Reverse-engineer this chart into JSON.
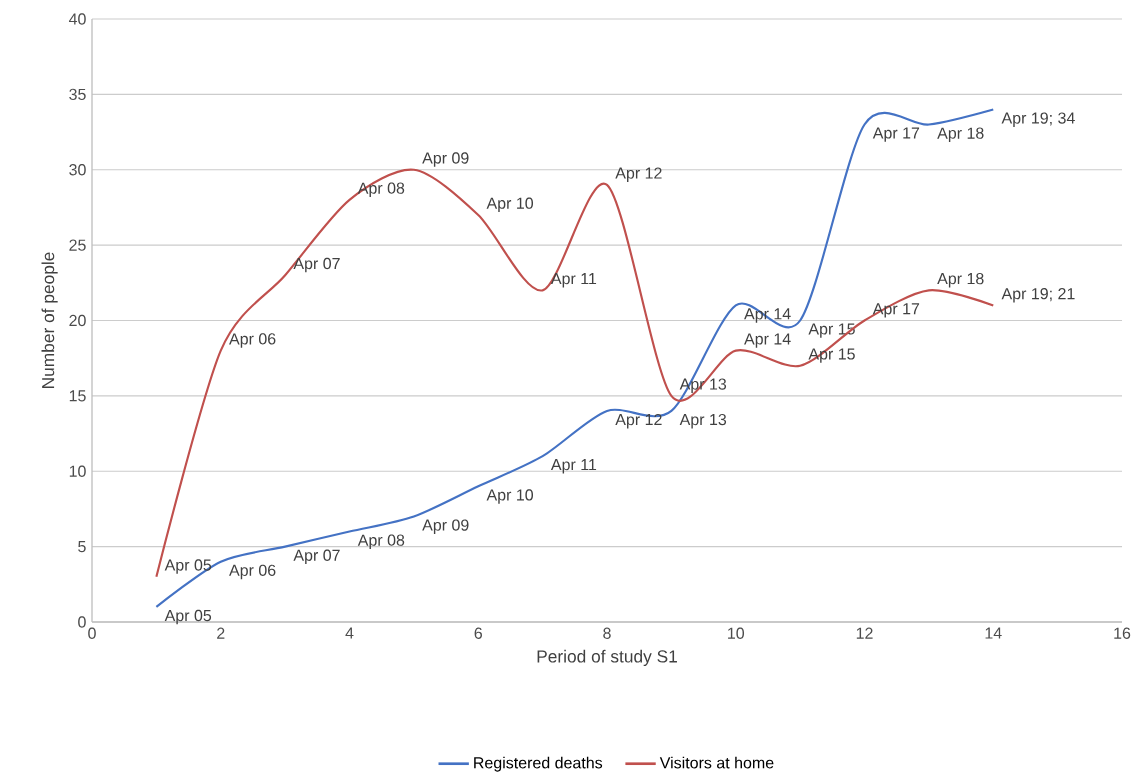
{
  "chart_data": {
    "type": "line",
    "xlabel": "Period of study S1",
    "ylabel": "Number of people",
    "x": [
      1,
      2,
      3,
      4,
      5,
      6,
      7,
      8,
      9,
      10,
      11,
      12,
      13,
      14
    ],
    "series": [
      {
        "name": "Registered deaths",
        "color": "#4472c4",
        "values": [
          1,
          4,
          5,
          6,
          7,
          9,
          11,
          14,
          14,
          21,
          20,
          33,
          33,
          34
        ],
        "value_labels": [
          "Apr 05",
          "Apr 06",
          "Apr 07",
          "Apr 08",
          "Apr 09",
          "Apr 10",
          "Apr 11",
          "Apr 12",
          "Apr 13",
          "Apr 14",
          "Apr 15",
          "Apr 17",
          "Apr 18",
          "Apr 19; 34"
        ]
      },
      {
        "name": "Visitors at home",
        "color": "#c0504d",
        "values": [
          3,
          18,
          23,
          28,
          30,
          27,
          22,
          29,
          15,
          18,
          17,
          20,
          22,
          21
        ],
        "value_labels": [
          "Apr 05",
          "Apr 06",
          "Apr 07",
          "Apr 08",
          "Apr 09",
          "Apr 10",
          "Apr 11",
          "Apr 12",
          "Apr 13",
          "Apr 14",
          "Apr 15",
          "Apr 17",
          "Apr 18",
          "Apr 19; 21"
        ]
      }
    ],
    "xlim": [
      0,
      16
    ],
    "ylim": [
      0,
      40
    ],
    "xticks": [
      0,
      2,
      4,
      6,
      8,
      10,
      12,
      14,
      16
    ],
    "yticks": [
      0,
      5,
      10,
      15,
      20,
      25,
      30,
      35,
      40
    ],
    "grid": "y",
    "legend": "bottom",
    "marker": "none",
    "line_style": "solid"
  }
}
